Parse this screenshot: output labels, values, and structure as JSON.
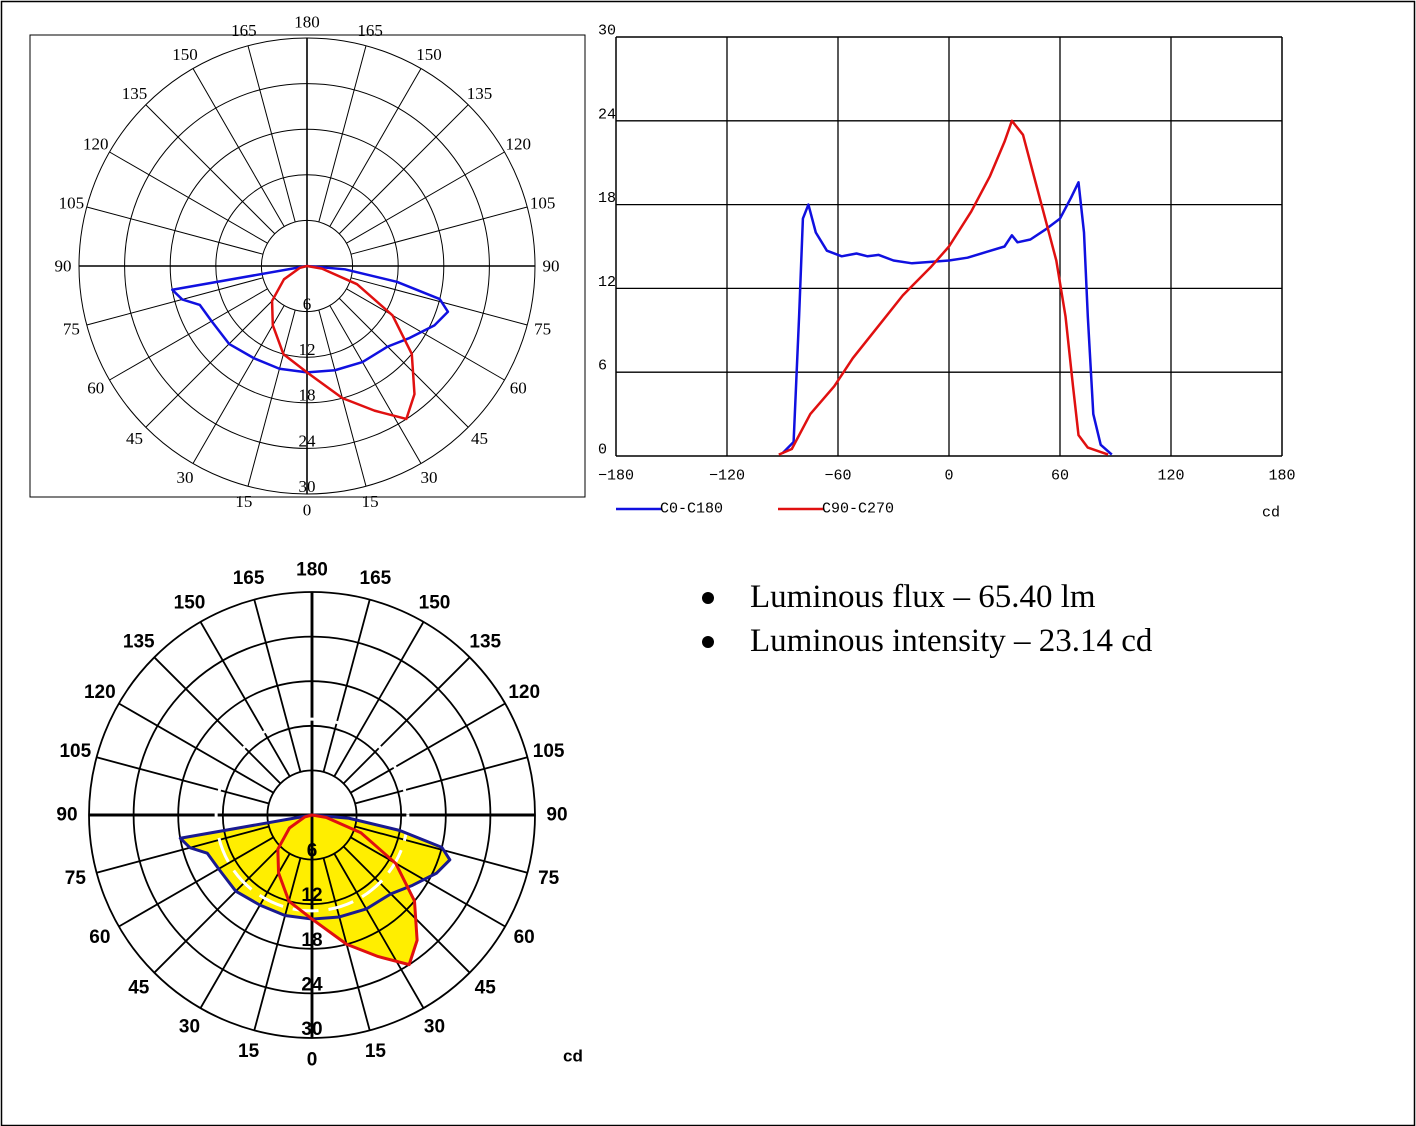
{
  "bullets": [
    "Luminous flux – 65.40 lm",
    "Luminous intensity – 23.14 cd"
  ],
  "colors": {
    "c0_c180": "#1010e0",
    "c90_c270": "#e01010",
    "fill_yellow": "#ffee00",
    "fill_outline_blue": "#1a1a90"
  },
  "chart_data": [
    {
      "type": "polar",
      "angle_labels": [
        "180",
        "165",
        "150",
        "135",
        "120",
        "105",
        "90",
        "75",
        "60",
        "45",
        "30",
        "15",
        "0",
        "15",
        "30",
        "45",
        "60",
        "75",
        "90",
        "105",
        "120",
        "135",
        "150",
        "165"
      ],
      "radial_labels": [
        "6",
        "12",
        "18",
        "24",
        "30"
      ],
      "rlim": [
        0,
        30
      ],
      "series": [
        {
          "name": "C0-C180",
          "color": "#1010e0",
          "points": [
            [
              -90,
              0
            ],
            [
              -80,
              18
            ],
            [
              -75,
              17
            ],
            [
              -70,
              15
            ],
            [
              -60,
              14.5
            ],
            [
              -45,
              14.5
            ],
            [
              -30,
              14
            ],
            [
              -15,
              14
            ],
            [
              0,
              14
            ],
            [
              15,
              14.2
            ],
            [
              30,
              14.6
            ],
            [
              45,
              15
            ],
            [
              55,
              16.5
            ],
            [
              65,
              18.5
            ],
            [
              72,
              19.5
            ],
            [
              76,
              18
            ],
            [
              80,
              12
            ],
            [
              85,
              5
            ],
            [
              90,
              0
            ]
          ]
        },
        {
          "name": "C90-C270",
          "color": "#e01010",
          "points": [
            [
              -90,
              0
            ],
            [
              -75,
              1
            ],
            [
              -60,
              3.5
            ],
            [
              -45,
              6.5
            ],
            [
              -30,
              9
            ],
            [
              -15,
              12
            ],
            [
              0,
              14
            ],
            [
              15,
              18
            ],
            [
              25,
              21
            ],
            [
              33,
              24
            ],
            [
              40,
              22
            ],
            [
              50,
              18
            ],
            [
              60,
              13
            ],
            [
              70,
              7
            ],
            [
              80,
              2
            ],
            [
              90,
              0
            ]
          ]
        }
      ]
    },
    {
      "type": "line",
      "xlim": [
        -180,
        180
      ],
      "ylim": [
        0,
        30
      ],
      "x_ticks": [
        "−180",
        "−120",
        "−60",
        "0",
        "60",
        "120",
        "180"
      ],
      "y_ticks": [
        "0",
        "6",
        "12",
        "18",
        "24",
        "30"
      ],
      "unit_label": "cd",
      "legend_position": "bottom-left",
      "grid": true,
      "series": [
        {
          "name": "C0-C180",
          "color": "#1010e0",
          "points": [
            [
              -90,
              0.2
            ],
            [
              -84,
              1
            ],
            [
              -81,
              10
            ],
            [
              -79,
              17
            ],
            [
              -76,
              18
            ],
            [
              -72,
              16
            ],
            [
              -66,
              14.7
            ],
            [
              -58,
              14.3
            ],
            [
              -50,
              14.5
            ],
            [
              -44,
              14.3
            ],
            [
              -38,
              14.4
            ],
            [
              -30,
              14
            ],
            [
              -20,
              13.8
            ],
            [
              -10,
              13.9
            ],
            [
              0,
              14
            ],
            [
              10,
              14.2
            ],
            [
              20,
              14.6
            ],
            [
              30,
              15
            ],
            [
              34,
              15.8
            ],
            [
              37,
              15.3
            ],
            [
              44,
              15.5
            ],
            [
              52,
              16.2
            ],
            [
              60,
              17
            ],
            [
              66,
              18.5
            ],
            [
              70,
              19.6
            ],
            [
              73,
              16
            ],
            [
              75,
              10
            ],
            [
              78,
              3
            ],
            [
              82,
              0.8
            ],
            [
              88,
              0.1
            ]
          ]
        },
        {
          "name": "C90-C270",
          "color": "#e01010",
          "points": [
            [
              -92,
              0.1
            ],
            [
              -85,
              0.5
            ],
            [
              -75,
              3
            ],
            [
              -62,
              5
            ],
            [
              -52,
              7
            ],
            [
              -40,
              9
            ],
            [
              -25,
              11.5
            ],
            [
              -10,
              13.5
            ],
            [
              0,
              15
            ],
            [
              12,
              17.5
            ],
            [
              22,
              20
            ],
            [
              30,
              22.5
            ],
            [
              34,
              24
            ],
            [
              40,
              23
            ],
            [
              46,
              20
            ],
            [
              52,
              17
            ],
            [
              58,
              14
            ],
            [
              63,
              10
            ],
            [
              67,
              5
            ],
            [
              70,
              1.5
            ],
            [
              75,
              0.6
            ],
            [
              86,
              0.1
            ]
          ]
        }
      ]
    },
    {
      "type": "polar",
      "angle_labels": [
        "180",
        "165",
        "150",
        "135",
        "120",
        "105",
        "90",
        "75",
        "60",
        "45",
        "30",
        "15",
        "0",
        "15",
        "30",
        "45",
        "60",
        "75",
        "90",
        "105",
        "120",
        "135",
        "150",
        "165"
      ],
      "radial_labels": [
        "6",
        "12",
        "18",
        "24",
        "30"
      ],
      "rlim": [
        0,
        30
      ],
      "unit_label": "cd",
      "series": [
        {
          "name": "C0-C180",
          "color": "#1a1a90",
          "fill": "#ffee00",
          "points": [
            [
              -90,
              0
            ],
            [
              -80,
              18
            ],
            [
              -75,
              17
            ],
            [
              -70,
              15
            ],
            [
              -60,
              14.5
            ],
            [
              -45,
              14.5
            ],
            [
              -30,
              14
            ],
            [
              -15,
              14
            ],
            [
              0,
              14
            ],
            [
              15,
              14.2
            ],
            [
              30,
              14.6
            ],
            [
              45,
              15
            ],
            [
              55,
              16.5
            ],
            [
              65,
              18.5
            ],
            [
              72,
              19.5
            ],
            [
              76,
              18
            ],
            [
              80,
              12
            ],
            [
              85,
              5
            ],
            [
              90,
              0
            ]
          ]
        },
        {
          "name": "C90-C270",
          "color": "#e01010",
          "fill": "#ffee00",
          "points": [
            [
              -90,
              0
            ],
            [
              -75,
              1
            ],
            [
              -60,
              3.5
            ],
            [
              -45,
              6.5
            ],
            [
              -30,
              9
            ],
            [
              -15,
              12
            ],
            [
              0,
              14
            ],
            [
              15,
              18
            ],
            [
              25,
              21
            ],
            [
              33,
              24
            ],
            [
              40,
              22
            ],
            [
              50,
              18
            ],
            [
              60,
              13
            ],
            [
              70,
              7
            ],
            [
              80,
              2
            ],
            [
              90,
              0
            ]
          ]
        }
      ]
    }
  ]
}
